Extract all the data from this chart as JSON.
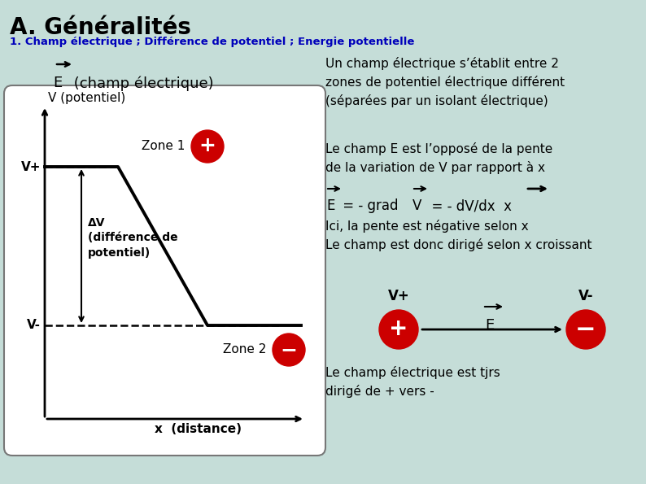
{
  "background_color": "#c5ddd8",
  "title": "A. Généralités",
  "subtitle": "1. Champ électrique ; Différence de potentiel ; Energie potentielle",
  "subtitle_color": "#0000bb",
  "title_color": "#000000",
  "text_right1": "Un champ électrique s’établit entre 2\nzones de potentiel électrique différent\n(séparées par un isolant électrique)",
  "text_right2": "Le champ E est l’opposé de la pente\nde la variation de V par rapport à x",
  "text_right3": "Ici, la pente est négative selon x\nLe champ est donc dirigé selon x croissant",
  "text_bottom": "Le champ électrique est tjrs\ndirigé de + vers -",
  "text_zone1": "Zone 1",
  "text_zone2": "Zone 2",
  "text_vpotentiel": "V (potentiel)",
  "text_x": "x  (distance)",
  "text_deltaV": "ΔV\n(différence de\npotentiel)",
  "red_color": "#cc0000",
  "vplus_label": "V+",
  "vminus_label": "V-",
  "formula_prefix": "E = - grad ",
  "formula_V": "V",
  "formula_suffix": "  = - dV/dx  x"
}
